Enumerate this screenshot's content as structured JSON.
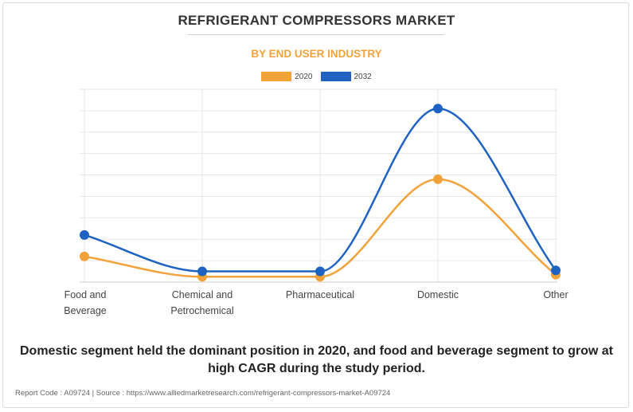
{
  "title": "REFRIGERANT COMPRESSORS MARKET",
  "subtitle": "BY END USER INDUSTRY",
  "caption": "Domestic segment held the dominant position in 2020, and food and beverage segment to grow at high CAGR during the study period.",
  "footer": "Report Code : A09724  |  Source : https://www.alliedmarketresearch.com/refrigerant-compressors-market-A09724",
  "colors": {
    "series_2020": "#f2a23a",
    "series_2032": "#1f63c2",
    "subtitle": "#f2a23a",
    "grid": "#e6e6e6"
  },
  "chart_data": {
    "type": "line",
    "categories": [
      "Food and\nBeverage",
      "Chemical and\nPetrochemical",
      "Pharmaceutical",
      "Domestic",
      "Other"
    ],
    "series": [
      {
        "name": "2020",
        "values": [
          1.2,
          0.25,
          0.25,
          4.8,
          0.35
        ]
      },
      {
        "name": "2032",
        "values": [
          2.2,
          0.5,
          0.5,
          8.1,
          0.55
        ]
      }
    ],
    "ylim": [
      0,
      9
    ],
    "grid": true,
    "smooth": true,
    "legend_position": "top-center",
    "y_tick_labels_shown": false
  }
}
